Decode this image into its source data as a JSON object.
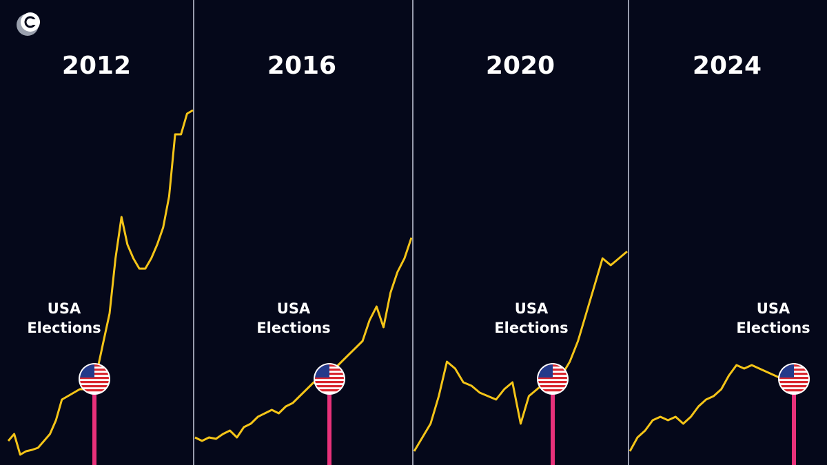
{
  "chart_data": [
    {
      "type": "line",
      "title": "2012",
      "annotation": "USA Elections",
      "color": "#f5c518",
      "ylim": [
        0,
        540
      ],
      "values": [
        35,
        45,
        15,
        20,
        22,
        25,
        35,
        45,
        65,
        95,
        100,
        105,
        110,
        110,
        120,
        140,
        180,
        220,
        300,
        360,
        320,
        300,
        285,
        285,
        300,
        320,
        345,
        390,
        480,
        480,
        510,
        515
      ]
    },
    {
      "type": "line",
      "title": "2016",
      "annotation": "USA Elections",
      "color": "#f5c518",
      "ylim": [
        0,
        540
      ],
      "values": [
        40,
        35,
        40,
        38,
        45,
        50,
        40,
        55,
        60,
        70,
        75,
        80,
        75,
        85,
        90,
        100,
        110,
        120,
        115,
        130,
        140,
        150,
        160,
        170,
        180,
        210,
        230,
        200,
        250,
        280,
        300,
        330
      ]
    },
    {
      "type": "line",
      "title": "2020",
      "annotation": "USA Elections",
      "color": "#f5c518",
      "ylim": [
        0,
        540
      ],
      "values": [
        20,
        40,
        60,
        100,
        150,
        140,
        120,
        115,
        105,
        100,
        95,
        110,
        120,
        60,
        100,
        110,
        120,
        125,
        130,
        150,
        180,
        220,
        260,
        300,
        290,
        300,
        310
      ]
    },
    {
      "type": "line",
      "title": "2024",
      "annotation": "USA Elections",
      "color": "#f5c518",
      "ylim": [
        0,
        540
      ],
      "values": [
        20,
        40,
        50,
        65,
        70,
        65,
        70,
        60,
        70,
        85,
        95,
        100,
        110,
        130,
        145,
        140,
        145,
        140,
        135,
        130,
        125
      ]
    }
  ]
}
